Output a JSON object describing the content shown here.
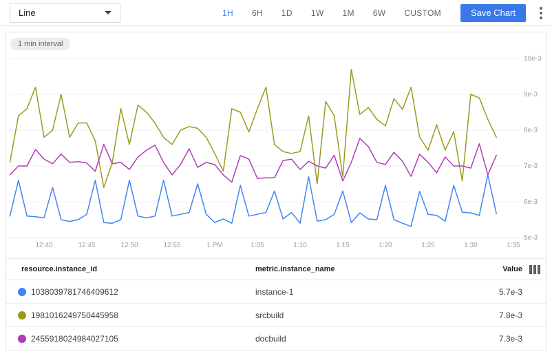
{
  "toolbar": {
    "chart_type": "Line",
    "time_ranges": [
      {
        "label": "1H"
      },
      {
        "label": "6H"
      },
      {
        "label": "1D"
      },
      {
        "label": "1W"
      },
      {
        "label": "1M"
      },
      {
        "label": "6W"
      },
      {
        "label": "CUSTOM"
      }
    ],
    "selected_range": "1H",
    "save_button": "Save Chart",
    "overflow_menu_icon": "kebab-vertical"
  },
  "chart": {
    "interval_badge": "1 min interval"
  },
  "chart_data": {
    "type": "line",
    "title": "",
    "grid": "horizontal gridlines only",
    "value_axis_side": "right",
    "legend_position": "table below chart",
    "x_tick_labels": [
      "12:40",
      "12:45",
      "12:50",
      "12:55",
      "1 PM",
      "1:05",
      "1:10",
      "1:15",
      "1:20",
      "1:25",
      "1:30",
      "1:35"
    ],
    "first_tick_sample_index": 4,
    "tick_every_n_samples": 5,
    "y_tick_labels": [
      "5e-3",
      "6e-3",
      "7e-3",
      "8e-3",
      "9e-3",
      "10e-3"
    ],
    "ylim_e3": [
      5,
      10
    ],
    "values_unit": "e-3 (values below are in thousandths)",
    "series": [
      {
        "name": "instance-1",
        "resource_instance_id": "1038039781746409612",
        "color": "#4184f3",
        "latest_value": "5.7e-3",
        "values_e3": [
          5.6,
          6.6,
          5.6,
          5.58,
          5.55,
          6.4,
          5.5,
          5.45,
          5.5,
          5.65,
          6.6,
          5.42,
          5.4,
          5.5,
          6.6,
          5.6,
          5.55,
          5.6,
          6.6,
          5.6,
          5.65,
          5.7,
          6.5,
          5.65,
          5.42,
          5.52,
          5.4,
          6.46,
          5.6,
          5.65,
          5.7,
          6.3,
          5.52,
          5.7,
          5.4,
          6.7,
          5.46,
          5.5,
          5.65,
          6.3,
          5.42,
          5.69,
          5.52,
          5.5,
          6.46,
          5.5,
          5.4,
          5.31,
          6.29,
          5.65,
          5.62,
          5.46,
          6.46,
          5.71,
          5.69,
          5.62,
          6.75,
          5.67
        ]
      },
      {
        "name": "srcbuild",
        "resource_instance_id": "1981016249750445958",
        "color": "#9a9a20",
        "latest_value": "7.8e-3",
        "values_e3": [
          7.1,
          8.4,
          8.6,
          9.2,
          7.8,
          8.0,
          9.0,
          7.8,
          8.2,
          8.2,
          7.7,
          6.4,
          7.1,
          8.6,
          7.6,
          8.7,
          8.5,
          8.2,
          7.8,
          7.6,
          8.0,
          8.1,
          8.05,
          7.8,
          7.35,
          6.85,
          8.6,
          8.5,
          7.95,
          8.6,
          9.2,
          7.6,
          7.4,
          7.35,
          7.4,
          8.4,
          6.5,
          8.8,
          8.4,
          6.7,
          9.7,
          8.44,
          8.63,
          8.3,
          8.12,
          8.88,
          8.58,
          9.2,
          7.81,
          7.44,
          8.15,
          7.44,
          7.96,
          6.58,
          9.0,
          8.9,
          8.3,
          7.8
        ]
      },
      {
        "name": "docbuild",
        "resource_instance_id": "2455918024984027105",
        "color": "#b13bb9",
        "latest_value": "7.3e-3",
        "values_e3": [
          6.75,
          7.0,
          7.0,
          7.46,
          7.19,
          7.06,
          7.33,
          7.1,
          7.12,
          7.08,
          6.85,
          7.6,
          7.06,
          7.1,
          6.9,
          7.25,
          7.44,
          7.58,
          7.1,
          6.75,
          7.04,
          7.48,
          6.96,
          7.1,
          7.04,
          6.75,
          6.55,
          7.29,
          7.19,
          6.65,
          6.67,
          6.67,
          7.15,
          7.19,
          6.9,
          7.13,
          7.0,
          6.94,
          7.3,
          6.58,
          7.1,
          7.77,
          7.54,
          7.1,
          7.04,
          7.38,
          7.13,
          6.71,
          7.33,
          7.1,
          6.81,
          7.25,
          7.0,
          7.0,
          6.94,
          7.62,
          6.75,
          7.3
        ]
      }
    ]
  },
  "table": {
    "columns": {
      "instance_id": "resource.instance_id",
      "instance_name": "metric.instance_name",
      "value": "Value"
    },
    "rows": [
      {
        "color": "#4184f3",
        "resource_instance_id": "1038039781746409612",
        "metric_instance_name": "instance-1",
        "value": "5.7e-3"
      },
      {
        "color": "#9a9a20",
        "resource_instance_id": "1981016249750445958",
        "metric_instance_name": "srcbuild",
        "value": "7.8e-3"
      },
      {
        "color": "#b13bb9",
        "resource_instance_id": "2455918024984027105",
        "metric_instance_name": "docbuild",
        "value": "7.3e-3"
      }
    ]
  }
}
